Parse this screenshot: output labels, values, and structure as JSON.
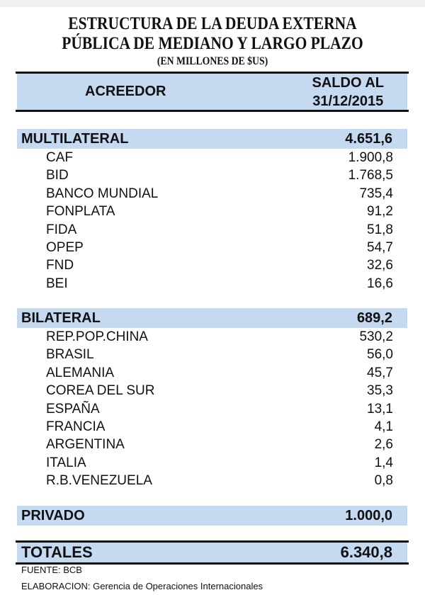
{
  "title": {
    "line1": "ESTRUCTURA DE LA DEUDA EXTERNA",
    "line2": "PÚBLICA DE MEDIANO Y LARGO PLAZO",
    "line3": "(EN MILLONES DE $US)"
  },
  "header": {
    "col1": "ACREEDOR",
    "col2_line1": "SALDO AL",
    "col2_line2": "31/12/2015"
  },
  "groups": [
    {
      "label": "MULTILATERAL",
      "value": "4.651,6",
      "items": [
        {
          "label": "CAF",
          "value": "1.900,8"
        },
        {
          "label": "BID",
          "value": "1.768,5"
        },
        {
          "label": "BANCO MUNDIAL",
          "value": "735,4"
        },
        {
          "label": "FONPLATA",
          "value": "91,2"
        },
        {
          "label": "FIDA",
          "value": "51,8"
        },
        {
          "label": "OPEP",
          "value": "54,7"
        },
        {
          "label": "FND",
          "value": "32,6"
        },
        {
          "label": "BEI",
          "value": "16,6"
        }
      ]
    },
    {
      "label": "BILATERAL",
      "value": "689,2",
      "items": [
        {
          "label": "REP.POP.CHINA",
          "value": "530,2"
        },
        {
          "label": "BRASIL",
          "value": "56,0"
        },
        {
          "label": "ALEMANIA",
          "value": "45,7"
        },
        {
          "label": "COREA DEL SUR",
          "value": "35,3"
        },
        {
          "label": "ESPAÑA",
          "value": "13,1"
        },
        {
          "label": "FRANCIA",
          "value": "4,1"
        },
        {
          "label": "ARGENTINA",
          "value": "2,6"
        },
        {
          "label": "ITALIA",
          "value": "1,4"
        },
        {
          "label": "R.B.VENEZUELA",
          "value": "0,8"
        }
      ]
    },
    {
      "label": "PRIVADO",
      "value": "1.000,0",
      "items": []
    }
  ],
  "total": {
    "label": "TOTALES",
    "value": "6.340,8"
  },
  "notes": {
    "source": "FUENTE: BCB",
    "prepared": "ELABORACION: Gerencia de Operaciones Internacionales"
  },
  "colors": {
    "band": "#c5d9f1",
    "rule": "#111111"
  }
}
